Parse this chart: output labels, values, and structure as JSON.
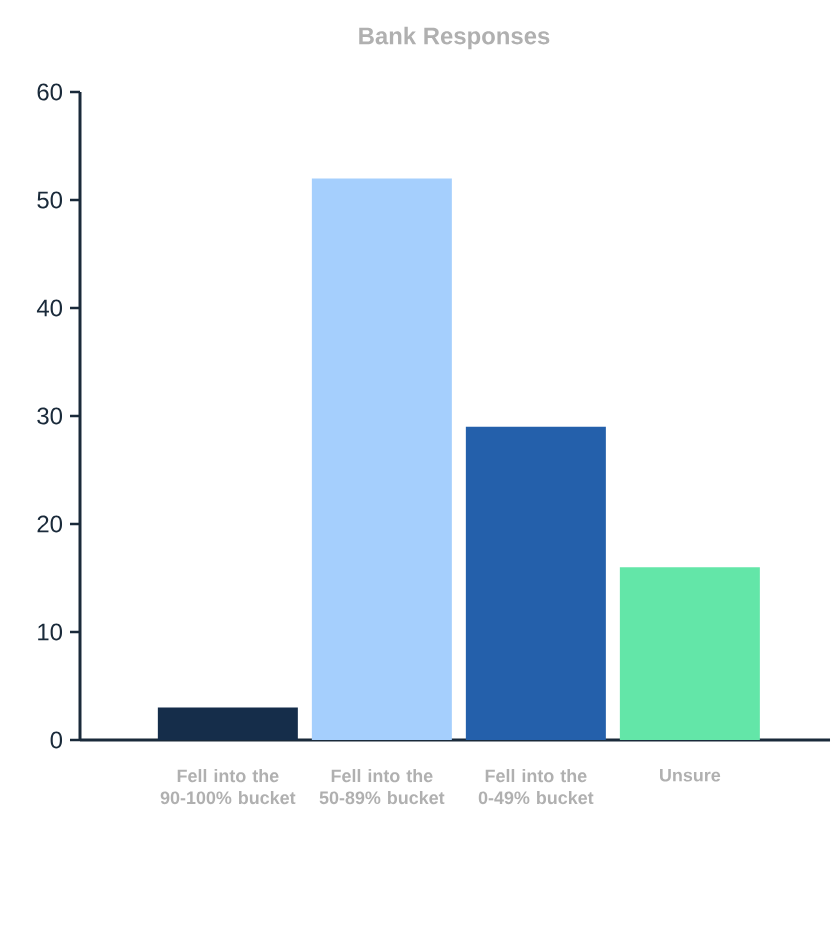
{
  "chart_data": {
    "type": "bar",
    "title": "Bank Responses",
    "categories": [
      "Fell into the 90-100% bucket",
      "Fell into the 50-89% bucket",
      "Fell into the 0-49% bucket",
      "Unsure"
    ],
    "values": [
      3,
      52,
      29,
      16
    ],
    "colors": [
      "#152d4a",
      "#a5cffd",
      "#2460ab",
      "#63e6a8"
    ],
    "ylim": [
      0,
      60
    ],
    "yticks": [
      0,
      10,
      20,
      30,
      40,
      50,
      60
    ],
    "grid": false
  }
}
